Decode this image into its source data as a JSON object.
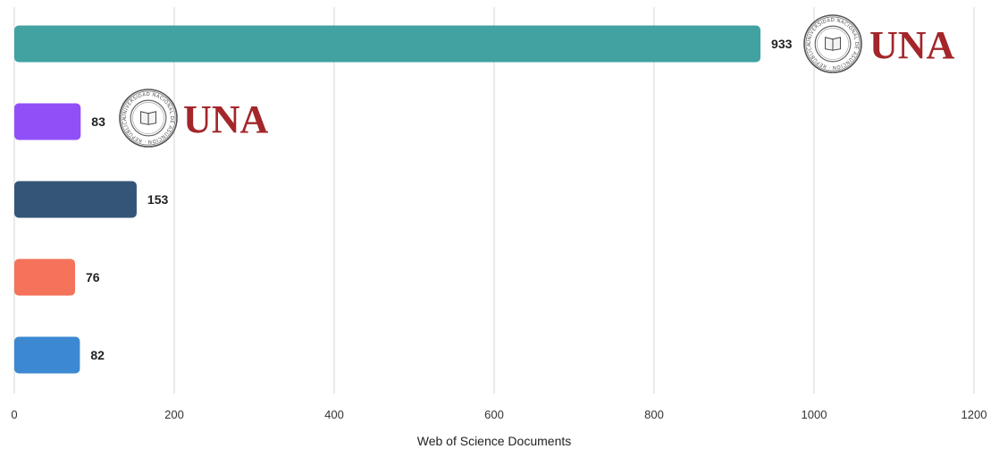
{
  "chart_data": {
    "type": "bar",
    "orientation": "horizontal",
    "categories": [
      "",
      "",
      "",
      "",
      ""
    ],
    "values": [
      933,
      83,
      153,
      76,
      82
    ],
    "colors": [
      "#41a2a1",
      "#9150f7",
      "#345577",
      "#f4735a",
      "#3c88d1"
    ],
    "xlabel": "Web of Science Documents",
    "ylabel": "",
    "xlim": [
      0,
      1200
    ],
    "xticks": [
      0,
      200,
      400,
      600,
      800,
      1000,
      1200
    ],
    "grid": "vertical",
    "legend": "none",
    "annotations": [
      {
        "bar_index": 0,
        "logo_text": "UNA",
        "seal_text": "UNIVERSIDAD NACIONAL DE ASUNCIÓN · REPÚBLICA DEL PARAGUAY"
      },
      {
        "bar_index": 1,
        "logo_text": "UNA",
        "seal_text": "UNIVERSIDAD NACIONAL DE ASUNCIÓN · REPÚBLICA DEL PARAGUAY"
      }
    ],
    "logo_color": "#a3262a"
  }
}
